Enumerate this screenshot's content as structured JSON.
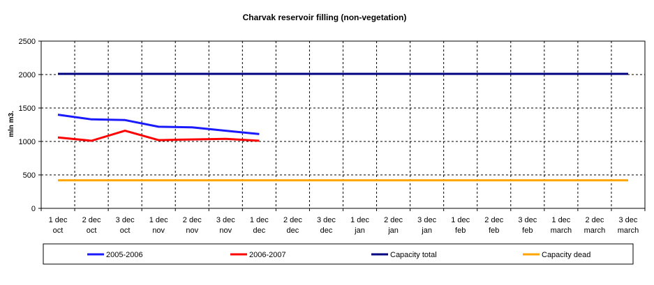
{
  "chart_data": {
    "type": "line",
    "title": "Charvak reservoir filling  (non-vegetation)",
    "ylabel": "mln m3.",
    "xlabel": "",
    "ylim": [
      0,
      2500
    ],
    "yticks": [
      0,
      500,
      1000,
      1500,
      2000,
      2500
    ],
    "grid": true,
    "legend_position": "bottom",
    "categories": [
      [
        "1 dec",
        "oct"
      ],
      [
        "2 dec",
        "oct"
      ],
      [
        "3 dec",
        "oct"
      ],
      [
        "1 dec",
        "nov"
      ],
      [
        "2 dec",
        "nov"
      ],
      [
        "3 dec",
        "nov"
      ],
      [
        "1 dec",
        "dec"
      ],
      [
        "2 dec",
        "dec"
      ],
      [
        "3 dec",
        "dec"
      ],
      [
        "1 dec",
        "jan"
      ],
      [
        "2 dec",
        "jan"
      ],
      [
        "3 dec",
        "jan"
      ],
      [
        "1 dec",
        "feb"
      ],
      [
        "2 dec",
        "feb"
      ],
      [
        "3 dec",
        "feb"
      ],
      [
        "1 dec",
        "march"
      ],
      [
        "2 dec",
        "march"
      ],
      [
        "3 dec",
        "march"
      ]
    ],
    "series": [
      {
        "name": "2005-2006",
        "color": "#1a1aff",
        "values": [
          1400,
          1330,
          1320,
          1220,
          1210,
          1160,
          1110,
          null,
          null,
          null,
          null,
          null,
          null,
          null,
          null,
          null,
          null,
          null
        ]
      },
      {
        "name": "2006-2007",
        "color": "#ff0000",
        "values": [
          1060,
          1010,
          1160,
          1020,
          1030,
          1040,
          1010,
          null,
          null,
          null,
          null,
          null,
          null,
          null,
          null,
          null,
          null,
          null
        ]
      },
      {
        "name": "Capacity total",
        "color": "#000080",
        "values": [
          2010,
          2010,
          2010,
          2010,
          2010,
          2010,
          2010,
          2010,
          2010,
          2010,
          2010,
          2010,
          2010,
          2010,
          2010,
          2010,
          2010,
          2010
        ]
      },
      {
        "name": "Capacity dead",
        "color": "#ffa500",
        "values": [
          420,
          420,
          420,
          420,
          420,
          420,
          420,
          420,
          420,
          420,
          420,
          420,
          420,
          420,
          420,
          420,
          420,
          420
        ]
      }
    ]
  }
}
